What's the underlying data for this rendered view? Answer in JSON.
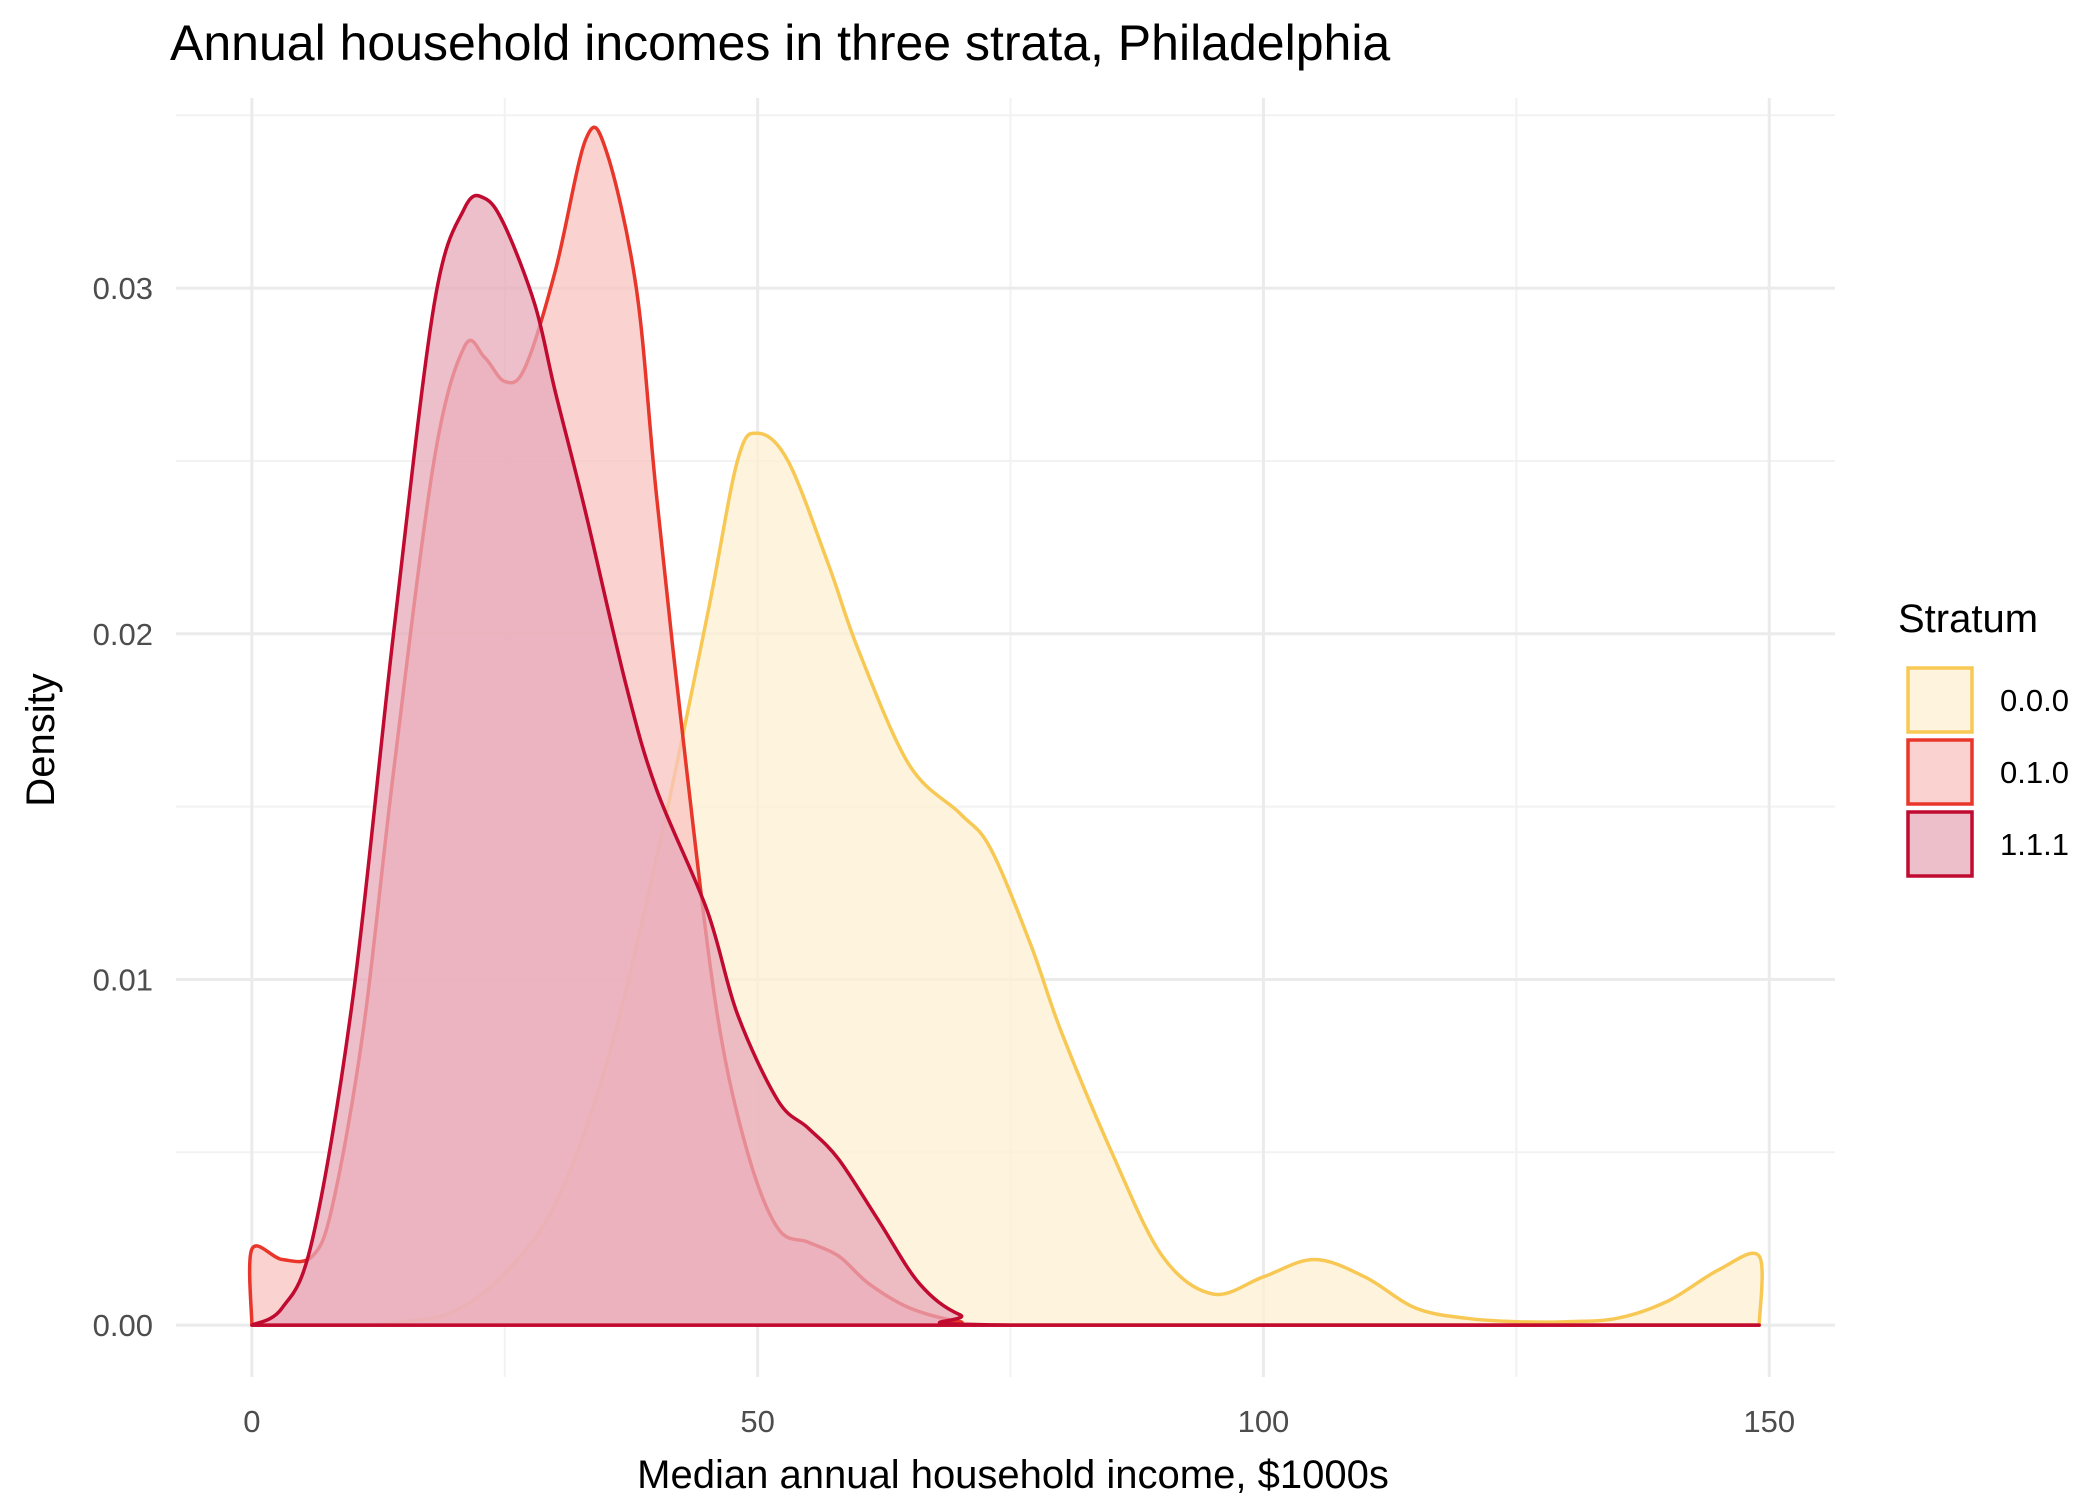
{
  "chart_data": {
    "type": "area",
    "title": "Annual household incomes in three strata, Philadelphia",
    "xlabel": "Median annual household income, $1000s",
    "ylabel": "Density",
    "xlim": [
      -7.5,
      156.5
    ],
    "ylim": [
      -0.0015,
      0.0355
    ],
    "x_ticks": [
      0,
      50,
      100,
      150
    ],
    "x_tick_labels": [
      "0",
      "50",
      "100",
      "150"
    ],
    "y_ticks": [
      0,
      0.01,
      0.02,
      0.03
    ],
    "y_tick_labels": [
      "0.00",
      "0.01",
      "0.02",
      "0.03"
    ],
    "grid": true,
    "legend": {
      "title": "Stratum",
      "position": "right"
    },
    "series": [
      {
        "name": "0.0.0",
        "color": "#F8C854",
        "fill": "#FEF0D2",
        "points": [
          [
            0,
            0
          ],
          [
            10,
            0
          ],
          [
            15,
            0.0001
          ],
          [
            20,
            0.0004
          ],
          [
            25,
            0.0015
          ],
          [
            30,
            0.0035
          ],
          [
            35,
            0.0075
          ],
          [
            40,
            0.0135
          ],
          [
            45,
            0.0205
          ],
          [
            48,
            0.025
          ],
          [
            50,
            0.0258
          ],
          [
            53,
            0.025
          ],
          [
            57,
            0.022
          ],
          [
            60,
            0.0195
          ],
          [
            65,
            0.0162
          ],
          [
            70,
            0.0148
          ],
          [
            73,
            0.0138
          ],
          [
            77,
            0.011
          ],
          [
            80,
            0.0085
          ],
          [
            85,
            0.005
          ],
          [
            90,
            0.002
          ],
          [
            95,
            0.0009
          ],
          [
            100,
            0.0014
          ],
          [
            105,
            0.0019
          ],
          [
            110,
            0.0014
          ],
          [
            115,
            0.0005
          ],
          [
            120,
            0.0002
          ],
          [
            125,
            0.0001
          ],
          [
            130,
            0.0001
          ],
          [
            135,
            0.0002
          ],
          [
            140,
            0.0007
          ],
          [
            145,
            0.0016
          ],
          [
            149,
            0.002
          ],
          [
            149.01,
            0
          ]
        ]
      },
      {
        "name": "0.1.0",
        "color": "#E8362B",
        "fill": "#F8C4C1",
        "points": [
          [
            0,
            0
          ],
          [
            0,
            0.0022
          ],
          [
            3,
            0.0019
          ],
          [
            6,
            0.002
          ],
          [
            8,
            0.0035
          ],
          [
            11,
            0.0085
          ],
          [
            14,
            0.016
          ],
          [
            18,
            0.025
          ],
          [
            21,
            0.0283
          ],
          [
            23,
            0.028
          ],
          [
            25,
            0.0273
          ],
          [
            27,
            0.0277
          ],
          [
            30,
            0.0305
          ],
          [
            33,
            0.0343
          ],
          [
            35,
            0.034
          ],
          [
            38,
            0.03
          ],
          [
            40,
            0.024
          ],
          [
            43,
            0.016
          ],
          [
            46,
            0.009
          ],
          [
            49,
            0.005
          ],
          [
            52,
            0.0028
          ],
          [
            55,
            0.0024
          ],
          [
            58,
            0.002
          ],
          [
            61,
            0.0012
          ],
          [
            65,
            0.0005
          ],
          [
            70,
            0.0001
          ],
          [
            75,
            0
          ],
          [
            149,
            0
          ]
        ]
      },
      {
        "name": "1.1.1",
        "color": "#C00A30",
        "fill": "#E7A9B9",
        "points": [
          [
            0,
            0
          ],
          [
            3,
            0.0005
          ],
          [
            6,
            0.0025
          ],
          [
            10,
            0.0095
          ],
          [
            14,
            0.02
          ],
          [
            18,
            0.0295
          ],
          [
            21,
            0.0323
          ],
          [
            23,
            0.0326
          ],
          [
            25,
            0.0318
          ],
          [
            28,
            0.0295
          ],
          [
            30,
            0.027
          ],
          [
            33,
            0.0235
          ],
          [
            37,
            0.0185
          ],
          [
            40,
            0.0155
          ],
          [
            45,
            0.012
          ],
          [
            48,
            0.009
          ],
          [
            52,
            0.0065
          ],
          [
            55,
            0.0057
          ],
          [
            58,
            0.0048
          ],
          [
            62,
            0.003
          ],
          [
            66,
            0.0012
          ],
          [
            70,
            0.0003
          ],
          [
            75,
            0
          ],
          [
            149,
            0
          ]
        ]
      }
    ]
  }
}
